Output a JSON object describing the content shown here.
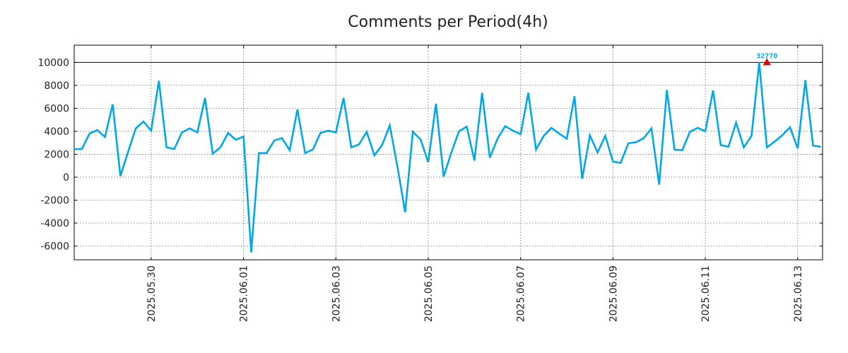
{
  "chart_data": {
    "type": "line",
    "title": "Comments per Period(4h)",
    "xlabel": "",
    "ylabel": "",
    "grid": true,
    "x_ticks": [
      "2025.05.30",
      "2025.06.01",
      "2025.06.03",
      "2025.06.05",
      "2025.06.07",
      "2025.06.09",
      "2025.06.11",
      "2025.06.13"
    ],
    "y_ticks": [
      "10000",
      "8000",
      "6000",
      "4000",
      "2000",
      "0",
      "-2000",
      "-4000",
      "-6000"
    ],
    "ylim": [
      -7200,
      11500
    ],
    "reference_line": 10000,
    "annotation": {
      "label": "32770",
      "x": "2025.06.12 08:00",
      "y": 10000
    },
    "colors": {
      "line": "#00a8e8",
      "annotation": "#dd0000",
      "reference": "#000000"
    },
    "series": [
      {
        "values": [
          [
            "2025.05.28 08:00",
            2450
          ],
          [
            "2025.05.28 12:00",
            2450
          ],
          [
            "2025.05.28 16:00",
            3800
          ],
          [
            "2025.05.28 20:00",
            4100
          ],
          [
            "2025.05.29 00:00",
            3500
          ],
          [
            "2025.05.29 04:00",
            6350
          ],
          [
            "2025.05.29 08:00",
            100
          ],
          [
            "2025.05.29 12:00",
            2200
          ],
          [
            "2025.05.29 16:00",
            4250
          ],
          [
            "2025.05.29 20:00",
            4850
          ],
          [
            "2025.05.30 00:00",
            4050
          ],
          [
            "2025.05.30 04:00",
            8400
          ],
          [
            "2025.05.30 08:00",
            2600
          ],
          [
            "2025.05.30 12:00",
            2450
          ],
          [
            "2025.05.30 16:00",
            3900
          ],
          [
            "2025.05.30 20:00",
            4250
          ],
          [
            "2025.05.31 00:00",
            3900
          ],
          [
            "2025.05.31 04:00",
            6900
          ],
          [
            "2025.05.31 08:00",
            2050
          ],
          [
            "2025.05.31 12:00",
            2600
          ],
          [
            "2025.05.31 16:00",
            3850
          ],
          [
            "2025.05.31 20:00",
            3250
          ],
          [
            "2025.06.01 00:00",
            3550
          ],
          [
            "2025.06.01 04:00",
            -6550
          ],
          [
            "2025.06.01 08:00",
            2100
          ],
          [
            "2025.06.01 12:00",
            2100
          ],
          [
            "2025.06.01 16:00",
            3200
          ],
          [
            "2025.06.01 20:00",
            3400
          ],
          [
            "2025.06.02 00:00",
            2350
          ],
          [
            "2025.06.02 04:00",
            5900
          ],
          [
            "2025.06.02 08:00",
            2100
          ],
          [
            "2025.06.02 12:00",
            2400
          ],
          [
            "2025.06.02 16:00",
            3850
          ],
          [
            "2025.06.02 20:00",
            4050
          ],
          [
            "2025.06.03 00:00",
            3900
          ],
          [
            "2025.06.03 04:00",
            6900
          ],
          [
            "2025.06.03 08:00",
            2600
          ],
          [
            "2025.06.03 12:00",
            2850
          ],
          [
            "2025.06.03 16:00",
            3950
          ],
          [
            "2025.06.03 20:00",
            1900
          ],
          [
            "2025.06.04 00:00",
            2800
          ],
          [
            "2025.06.04 04:00",
            4500
          ],
          [
            "2025.06.04 08:00",
            900
          ],
          [
            "2025.06.04 12:00",
            -3050
          ],
          [
            "2025.06.04 16:00",
            3950
          ],
          [
            "2025.06.04 20:00",
            3300
          ],
          [
            "2025.06.05 00:00",
            1300
          ],
          [
            "2025.06.05 04:00",
            6400
          ],
          [
            "2025.06.05 08:00",
            50
          ],
          [
            "2025.06.05 12:00",
            2150
          ],
          [
            "2025.06.05 16:00",
            4000
          ],
          [
            "2025.06.05 20:00",
            4400
          ],
          [
            "2025.06.06 00:00",
            1450
          ],
          [
            "2025.06.06 04:00",
            7350
          ],
          [
            "2025.06.06 08:00",
            1700
          ],
          [
            "2025.06.06 12:00",
            3350
          ],
          [
            "2025.06.06 16:00",
            4450
          ],
          [
            "2025.06.06 20:00",
            4050
          ],
          [
            "2025.06.07 00:00",
            3750
          ],
          [
            "2025.06.07 04:00",
            7350
          ],
          [
            "2025.06.07 08:00",
            2400
          ],
          [
            "2025.06.07 12:00",
            3600
          ],
          [
            "2025.06.07 16:00",
            4300
          ],
          [
            "2025.06.07 20:00",
            3800
          ],
          [
            "2025.06.08 00:00",
            3350
          ],
          [
            "2025.06.08 04:00",
            7050
          ],
          [
            "2025.06.08 08:00",
            -150
          ],
          [
            "2025.06.08 12:00",
            3650
          ],
          [
            "2025.06.08 16:00",
            2150
          ],
          [
            "2025.06.08 20:00",
            3600
          ],
          [
            "2025.06.09 00:00",
            1350
          ],
          [
            "2025.06.09 04:00",
            1250
          ],
          [
            "2025.06.09 08:00",
            2950
          ],
          [
            "2025.06.09 12:00",
            3050
          ],
          [
            "2025.06.09 16:00",
            3400
          ],
          [
            "2025.06.09 20:00",
            4250
          ],
          [
            "2025.06.10 00:00",
            -650
          ],
          [
            "2025.06.10 04:00",
            7600
          ],
          [
            "2025.06.10 08:00",
            2400
          ],
          [
            "2025.06.10 12:00",
            2350
          ],
          [
            "2025.06.10 16:00",
            3950
          ],
          [
            "2025.06.10 20:00",
            4300
          ],
          [
            "2025.06.11 00:00",
            4000
          ],
          [
            "2025.06.11 04:00",
            7550
          ],
          [
            "2025.06.11 08:00",
            2800
          ],
          [
            "2025.06.11 12:00",
            2650
          ],
          [
            "2025.06.11 16:00",
            4750
          ],
          [
            "2025.06.11 20:00",
            2600
          ],
          [
            "2025.06.12 00:00",
            3600
          ],
          [
            "2025.06.12 04:00",
            10000
          ],
          [
            "2025.06.12 08:00",
            2600
          ],
          [
            "2025.06.12 12:00",
            3100
          ],
          [
            "2025.06.12 16:00",
            3650
          ],
          [
            "2025.06.12 20:00",
            4350
          ],
          [
            "2025.06.13 00:00",
            2500
          ],
          [
            "2025.06.13 04:00",
            8450
          ],
          [
            "2025.06.13 08:00",
            2750
          ],
          [
            "2025.06.13 12:00",
            2650
          ]
        ]
      }
    ]
  }
}
